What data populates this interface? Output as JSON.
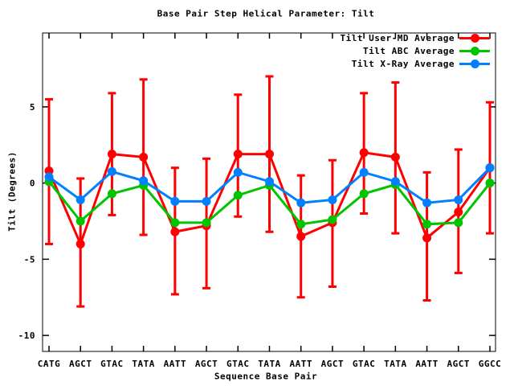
{
  "chart_data": {
    "type": "line",
    "title": "Base Pair Step Helical Parameter: Tilt",
    "xlabel": "Sequence Base Pair",
    "ylabel": "Tilt (Degrees)",
    "ylim": [
      -11.05,
      9.85
    ],
    "yticks": [
      5,
      0,
      -5,
      -10
    ],
    "grid": false,
    "legend_position": "top-right-inside",
    "categories": [
      "CATG",
      "AGCT",
      "GTAC",
      "TATA",
      "AATT",
      "AGCT",
      "GTAC",
      "TATA",
      "AATT",
      "AGCT",
      "GTAC",
      "TATA",
      "AATT",
      "AGCT",
      "GGCC"
    ],
    "series": [
      {
        "name": "Tilt User-MD Average",
        "color": "#ff0000",
        "marker": "circle",
        "values": [
          0.8,
          -4.0,
          1.9,
          1.7,
          -3.2,
          -2.8,
          1.9,
          1.9,
          -3.5,
          -2.6,
          2.0,
          1.7,
          -3.6,
          -1.9,
          1.0
        ],
        "error_high": [
          5.5,
          0.3,
          5.9,
          6.8,
          1.0,
          1.6,
          5.8,
          7.0,
          0.5,
          1.5,
          5.9,
          6.6,
          0.7,
          2.2,
          5.3
        ],
        "error_low": [
          -4.0,
          -8.1,
          -2.1,
          -3.4,
          -7.3,
          -6.9,
          -2.2,
          -3.2,
          -7.5,
          -6.8,
          -2.0,
          -3.3,
          -7.7,
          -5.9,
          -3.3
        ]
      },
      {
        "name": "Tilt ABC Average",
        "color": "#00c400",
        "marker": "circle",
        "values": [
          0.1,
          -2.5,
          -0.7,
          -0.15,
          -2.6,
          -2.6,
          -0.8,
          -0.15,
          -2.7,
          -2.4,
          -0.7,
          -0.1,
          -2.7,
          -2.6,
          0.0
        ]
      },
      {
        "name": "Tilt X-Ray Average",
        "color": "#0080ff",
        "marker": "circle",
        "values": [
          0.4,
          -1.1,
          0.75,
          0.15,
          -1.2,
          -1.2,
          0.7,
          0.1,
          -1.3,
          -1.1,
          0.7,
          0.1,
          -1.3,
          -1.1,
          1.0
        ]
      }
    ]
  }
}
